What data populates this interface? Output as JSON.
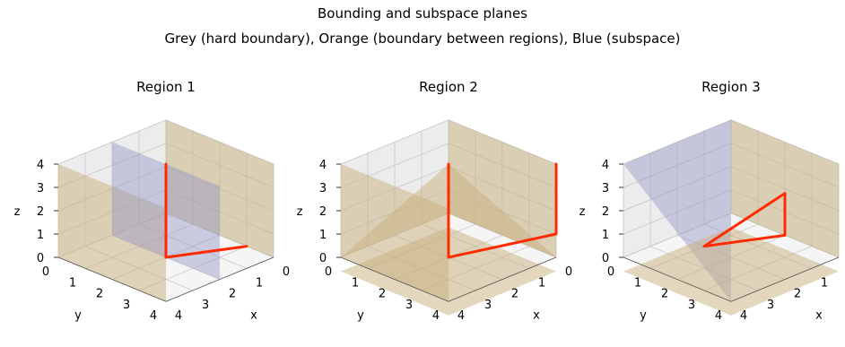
{
  "title": "Bounding and subspace planes",
  "subtitle": "Grey (hard boundary), Orange (boundary between regions), Blue (subspace)",
  "colors": {
    "grey": "#b4b4b4",
    "orange": "#c7b07e",
    "blue": "#8e92c4",
    "path": "#ff2a00",
    "pane": "#e6e6e6"
  },
  "chart_data": [
    {
      "type": "3d-surface",
      "title": "Region 1",
      "xlabel": "x",
      "ylabel": "y",
      "zlabel": "z",
      "xlim": [
        0,
        4
      ],
      "ylim": [
        0,
        4
      ],
      "zlim": [
        0,
        4
      ],
      "ticks": [
        0,
        1,
        2,
        3,
        4
      ],
      "grid": true,
      "planes": [
        {
          "color": "orange",
          "points": [
            [
              0,
              0,
              0
            ],
            [
              0,
              4,
              0
            ],
            [
              0,
              4,
              4
            ],
            [
              0,
              0,
              4
            ]
          ]
        },
        {
          "color": "orange",
          "points": [
            [
              4,
              0,
              0
            ],
            [
              4,
              4,
              0
            ],
            [
              4,
              4,
              4
            ],
            [
              4,
              0,
              4
            ]
          ]
        },
        {
          "color": "blue",
          "points": [
            [
              2,
              0,
              0
            ],
            [
              2,
              4,
              0
            ],
            [
              2,
              4,
              4
            ],
            [
              2,
              0,
              4
            ]
          ]
        }
      ],
      "path": [
        [
          2,
          2,
          4
        ],
        [
          2,
          2,
          0
        ],
        [
          0,
          3,
          0
        ]
      ]
    },
    {
      "type": "3d-surface",
      "title": "Region 2",
      "xlabel": "x",
      "ylabel": "y",
      "zlabel": "z",
      "xlim": [
        0,
        4
      ],
      "ylim": [
        0,
        4
      ],
      "zlim": [
        0,
        4
      ],
      "ticks": [
        0,
        1,
        2,
        3,
        4
      ],
      "grid": true,
      "planes": [
        {
          "color": "orange",
          "points": [
            [
              0,
              0,
              0
            ],
            [
              0,
              4,
              0
            ],
            [
              0,
              4,
              4
            ],
            [
              0,
              0,
              4
            ]
          ]
        },
        {
          "color": "orange",
          "points": [
            [
              4,
              0,
              0
            ],
            [
              4,
              4,
              0
            ],
            [
              4,
              4,
              4
            ],
            [
              4,
              0,
              4
            ]
          ]
        },
        {
          "color": "orange",
          "points": [
            [
              0,
              0,
              0
            ],
            [
              4,
              0,
              0
            ],
            [
              2,
              2,
              4
            ]
          ]
        },
        {
          "color": "orange",
          "points": [
            [
              0,
              0,
              0
            ],
            [
              0,
              4,
              0
            ],
            [
              2,
              2,
              4
            ]
          ]
        },
        {
          "color": "blue",
          "points": [
            [
              0,
              0,
              0
            ],
            [
              4,
              4,
              0
            ],
            [
              2,
              2,
              4
            ]
          ]
        },
        {
          "color": "orange",
          "points": [
            [
              0,
              0,
              -0.6
            ],
            [
              4,
              0,
              -0.6
            ],
            [
              4,
              4,
              -0.6
            ],
            [
              0,
              4,
              -0.6
            ]
          ]
        }
      ],
      "path": [
        [
          0,
          4,
          4
        ],
        [
          0,
          4,
          1
        ],
        [
          2,
          2,
          0
        ],
        [
          2,
          2,
          4
        ]
      ]
    },
    {
      "type": "3d-surface",
      "title": "Region 3",
      "xlabel": "x",
      "ylabel": "y",
      "zlabel": "z",
      "xlim": [
        0,
        4
      ],
      "ylim": [
        0,
        4
      ],
      "zlim": [
        0,
        4
      ],
      "ticks": [
        0,
        1,
        2,
        3,
        4
      ],
      "grid": true,
      "planes": [
        {
          "color": "orange",
          "points": [
            [
              0,
              0,
              0
            ],
            [
              0,
              4,
              0
            ],
            [
              0,
              4,
              4
            ],
            [
              0,
              0,
              4
            ]
          ]
        },
        {
          "color": "blue",
          "points": [
            [
              0,
              0,
              0
            ],
            [
              4,
              4,
              0
            ],
            [
              4,
              4,
              4
            ]
          ]
        },
        {
          "color": "blue",
          "points": [
            [
              0,
              0,
              4
            ],
            [
              4,
              0,
              4
            ],
            [
              4,
              4,
              0
            ]
          ]
        },
        {
          "color": "orange",
          "points": [
            [
              0,
              0,
              -0.6
            ],
            [
              4,
              0,
              -0.6
            ],
            [
              4,
              4,
              -0.6
            ],
            [
              0,
              4,
              -0.6
            ]
          ]
        }
      ],
      "path": [
        [
          0,
          2,
          0
        ],
        [
          0,
          2,
          1.8
        ],
        [
          2,
          1,
          0
        ],
        [
          0,
          2,
          0
        ]
      ]
    }
  ]
}
